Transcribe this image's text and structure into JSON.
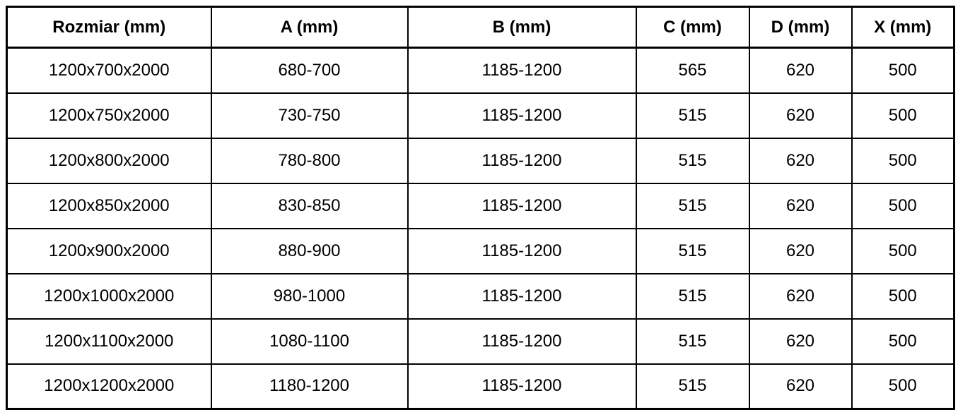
{
  "table": {
    "headers": [
      "Rozmiar (mm)",
      "A (mm)",
      "B (mm)",
      "C (mm)",
      "D (mm)",
      "X (mm)"
    ],
    "rows": [
      [
        "1200x700x2000",
        "680-700",
        "1185-1200",
        "565",
        "620",
        "500"
      ],
      [
        "1200x750x2000",
        "730-750",
        "1185-1200",
        "515",
        "620",
        "500"
      ],
      [
        "1200x800x2000",
        "780-800",
        "1185-1200",
        "515",
        "620",
        "500"
      ],
      [
        "1200x850x2000",
        "830-850",
        "1185-1200",
        "515",
        "620",
        "500"
      ],
      [
        "1200x900x2000",
        "880-900",
        "1185-1200",
        "515",
        "620",
        "500"
      ],
      [
        "1200x1000x2000",
        "980-1000",
        "1185-1200",
        "515",
        "620",
        "500"
      ],
      [
        "1200x1100x2000",
        "1080-1100",
        "1185-1200",
        "515",
        "620",
        "500"
      ],
      [
        "1200x1200x2000",
        "1180-1200",
        "1185-1200",
        "515",
        "620",
        "500"
      ]
    ],
    "colors": {
      "border": "#000000",
      "text": "#000000",
      "background": "#ffffff"
    }
  }
}
